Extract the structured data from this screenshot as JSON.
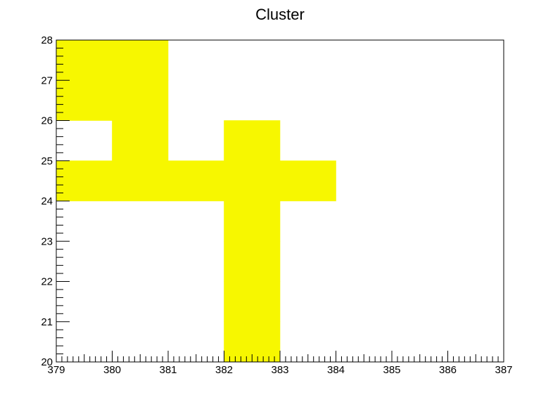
{
  "chart_data": {
    "type": "heatmap",
    "title": "Cluster",
    "xlabel": "",
    "ylabel": "",
    "xlim": [
      379,
      387
    ],
    "ylim": [
      20,
      28
    ],
    "x_ticks": [
      "379",
      "380",
      "381",
      "382",
      "383",
      "384",
      "385",
      "386",
      "387"
    ],
    "y_ticks": [
      "20",
      "21",
      "22",
      "23",
      "24",
      "25",
      "26",
      "27",
      "28"
    ],
    "bin_width": 1,
    "bin_height": 1,
    "fill_color": "#f7f700",
    "filled_bins": [
      {
        "x": 379,
        "y": 27
      },
      {
        "x": 380,
        "y": 27
      },
      {
        "x": 379,
        "y": 26
      },
      {
        "x": 380,
        "y": 26
      },
      {
        "x": 380,
        "y": 25
      },
      {
        "x": 382,
        "y": 25
      },
      {
        "x": 379,
        "y": 24
      },
      {
        "x": 380,
        "y": 24
      },
      {
        "x": 381,
        "y": 24
      },
      {
        "x": 382,
        "y": 24
      },
      {
        "x": 383,
        "y": 24
      },
      {
        "x": 382,
        "y": 23
      },
      {
        "x": 382,
        "y": 22
      },
      {
        "x": 382,
        "y": 21
      },
      {
        "x": 382,
        "y": 20
      }
    ],
    "grid": false,
    "legend": "none"
  }
}
